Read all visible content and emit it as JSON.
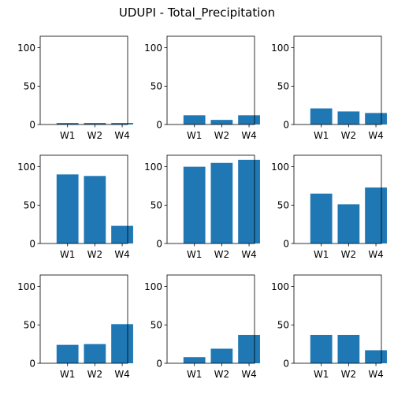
{
  "title": "UDUPI - Total_Precipitation",
  "colors": {
    "bar": "#1f77b4",
    "axes": "#000000"
  },
  "chart_data": [
    {
      "type": "bar",
      "categories": [
        "W1",
        "W2",
        "W4"
      ],
      "values": [
        2,
        2,
        2
      ],
      "ylim": [
        0,
        115
      ],
      "yticks": [
        0,
        50,
        100
      ],
      "grid": false
    },
    {
      "type": "bar",
      "categories": [
        "W1",
        "W2",
        "W4"
      ],
      "values": [
        12,
        6,
        12
      ],
      "ylim": [
        0,
        115
      ],
      "yticks": [
        0,
        50,
        100
      ],
      "grid": false
    },
    {
      "type": "bar",
      "categories": [
        "W1",
        "W2",
        "W4"
      ],
      "values": [
        21,
        17,
        15
      ],
      "ylim": [
        0,
        115
      ],
      "yticks": [
        0,
        50,
        100
      ],
      "grid": false
    },
    {
      "type": "bar",
      "categories": [
        "W1",
        "W2",
        "W4"
      ],
      "values": [
        90,
        88,
        23
      ],
      "ylim": [
        0,
        115
      ],
      "yticks": [
        0,
        50,
        100
      ],
      "grid": false
    },
    {
      "type": "bar",
      "categories": [
        "W1",
        "W2",
        "W4"
      ],
      "values": [
        100,
        105,
        109
      ],
      "ylim": [
        0,
        115
      ],
      "yticks": [
        0,
        50,
        100
      ],
      "grid": false
    },
    {
      "type": "bar",
      "categories": [
        "W1",
        "W2",
        "W4"
      ],
      "values": [
        65,
        51,
        73
      ],
      "ylim": [
        0,
        115
      ],
      "yticks": [
        0,
        50,
        100
      ],
      "grid": false
    },
    {
      "type": "bar",
      "categories": [
        "W1",
        "W2",
        "W4"
      ],
      "values": [
        24,
        25,
        51
      ],
      "ylim": [
        0,
        115
      ],
      "yticks": [
        0,
        50,
        100
      ],
      "grid": false
    },
    {
      "type": "bar",
      "categories": [
        "W1",
        "W2",
        "W4"
      ],
      "values": [
        8,
        19,
        37
      ],
      "ylim": [
        0,
        115
      ],
      "yticks": [
        0,
        50,
        100
      ],
      "grid": false
    },
    {
      "type": "bar",
      "categories": [
        "W1",
        "W2",
        "W4"
      ],
      "values": [
        37,
        37,
        17
      ],
      "ylim": [
        0,
        115
      ],
      "yticks": [
        0,
        50,
        100
      ],
      "grid": false
    }
  ]
}
